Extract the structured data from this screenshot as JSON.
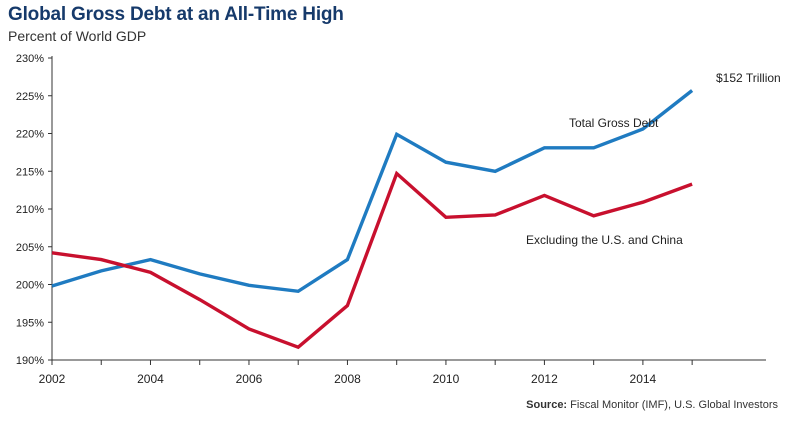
{
  "header": {
    "title": "Global Gross Debt at an All-Time High",
    "subtitle": "Percent of World GDP"
  },
  "footer": {
    "source_label": "Source:",
    "source_text": "Fiscal Monitor (IMF), U.S. Global Investors"
  },
  "colors": {
    "title": "#163a6b",
    "total_series": "#1f7bc1",
    "excl_series": "#c8102e",
    "axis": "#333333"
  },
  "chart_data": {
    "type": "line",
    "title": "Global Gross Debt at an All-Time High",
    "subtitle": "Percent of World GDP",
    "xlabel": "",
    "ylabel": "",
    "x": [
      2002,
      2003,
      2004,
      2005,
      2006,
      2007,
      2008,
      2009,
      2010,
      2011,
      2012,
      2013,
      2014,
      2015
    ],
    "xticks": [
      2002,
      2004,
      2006,
      2008,
      2010,
      2012,
      2014
    ],
    "xtick_labels": [
      "2002",
      "2004",
      "2006",
      "2008",
      "2010",
      "2012",
      "2014"
    ],
    "xlim": [
      2002,
      2016.5
    ],
    "ylim": [
      190,
      230
    ],
    "yticks": [
      190,
      195,
      200,
      205,
      210,
      215,
      220,
      225,
      230
    ],
    "ytick_labels": [
      "190%",
      "195%",
      "200%",
      "205%",
      "210%",
      "215%",
      "220%",
      "225%",
      "230%"
    ],
    "grid": false,
    "series": [
      {
        "name": "Total Gross Debt",
        "color": "#1f7bc1",
        "values": [
          199.8,
          201.8,
          203.3,
          201.4,
          199.9,
          199.1,
          203.3,
          219.9,
          216.2,
          215.0,
          218.1,
          218.1,
          220.6,
          225.7
        ]
      },
      {
        "name": "Excluding the U.S. and China",
        "color": "#c8102e",
        "values": [
          204.2,
          203.3,
          201.6,
          198.0,
          194.1,
          191.7,
          197.2,
          214.7,
          208.9,
          209.2,
          211.8,
          209.1,
          210.9,
          213.3
        ]
      }
    ],
    "annotations": [
      {
        "text": "$152 Trillion",
        "x": 2015,
        "y": 225.7
      }
    ]
  }
}
